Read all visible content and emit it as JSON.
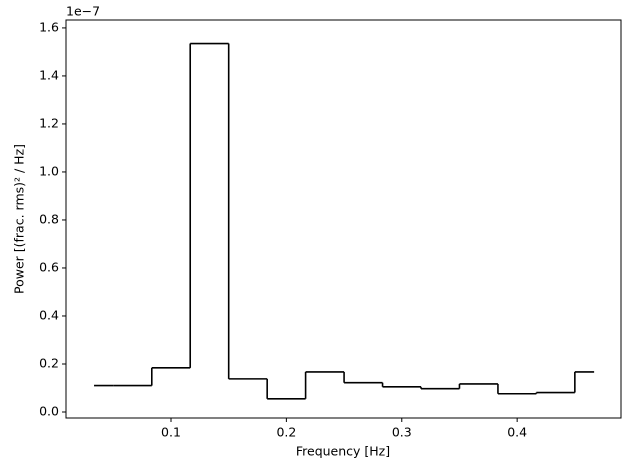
{
  "chart_data": {
    "type": "line",
    "step": "mid",
    "x_label": "Frequency [Hz]",
    "y_label": "Power [(frac. rms)² / Hz]",
    "y_offset_label": "1e−7",
    "x": [
      0.0333,
      0.0667,
      0.1,
      0.1333,
      0.1667,
      0.2,
      0.2333,
      0.2667,
      0.3,
      0.3333,
      0.3667,
      0.4,
      0.4333,
      0.4667
    ],
    "series": [
      {
        "color": "#000000",
        "values": [
          0.11,
          0.11,
          0.184,
          1.535,
          0.138,
          0.055,
          0.167,
          0.122,
          0.105,
          0.097,
          0.117,
          0.076,
          0.081,
          0.167
        ]
      }
    ],
    "xlim": [
      0.009,
      0.49
    ],
    "ylim": [
      -0.025,
      1.633
    ],
    "xticks": [
      0.1,
      0.2,
      0.3,
      0.4
    ],
    "yticks": [
      {
        "value": 0,
        "label": "0.0"
      },
      0.2,
      0.4,
      0.6,
      0.8,
      {
        "value": 1,
        "label": "1.0"
      },
      1.2,
      1.4,
      1.6
    ]
  }
}
